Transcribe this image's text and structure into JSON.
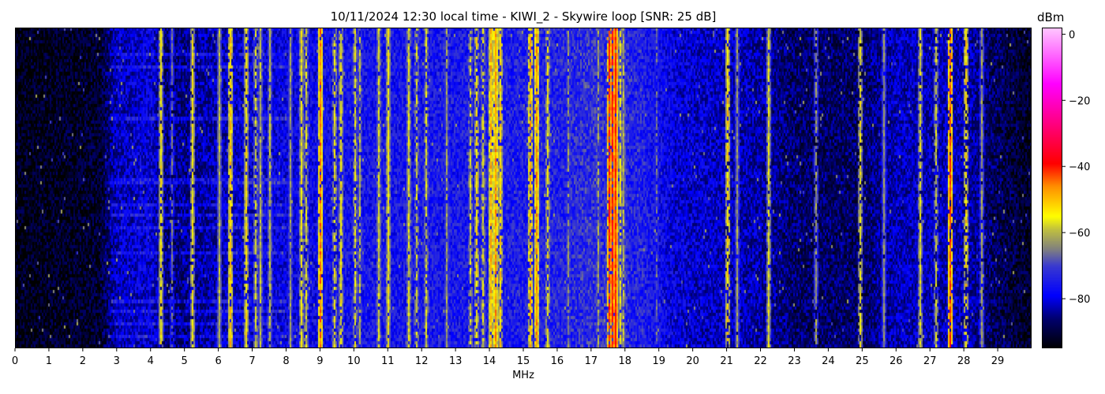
{
  "chart_data": {
    "type": "heatmap",
    "title": "10/11/2024 12:30 local time - KIWI_2 - Skywire loop [SNR: 25 dB]",
    "xlabel": "MHz",
    "ylabel": "",
    "xlim": [
      0,
      30
    ],
    "x_ticks": [
      "0",
      "1",
      "2",
      "3",
      "4",
      "5",
      "6",
      "7",
      "8",
      "9",
      "10",
      "11",
      "12",
      "13",
      "14",
      "15",
      "16",
      "17",
      "18",
      "19",
      "20",
      "21",
      "22",
      "23",
      "24",
      "25",
      "26",
      "27",
      "28",
      "29"
    ],
    "colorbar": {
      "label": "dBm",
      "range": [
        -95,
        2
      ],
      "ticks": [
        "0",
        "−20",
        "−40",
        "−60",
        "−80"
      ],
      "tick_values": [
        0,
        -20,
        -40,
        -60,
        -80
      ],
      "colormap": [
        [
          -95,
          "#000000"
        ],
        [
          -86,
          "#00006e"
        ],
        [
          -79,
          "#0000ff"
        ],
        [
          -70,
          "#3a3ad0"
        ],
        [
          -65,
          "#808080"
        ],
        [
          -59,
          "#c0c040"
        ],
        [
          -55,
          "#ffff00"
        ],
        [
          -46,
          "#ff9000"
        ],
        [
          -39,
          "#ff0000"
        ],
        [
          -27,
          "#ff0080"
        ],
        [
          -15,
          "#ff00ff"
        ],
        [
          2,
          "#ffc8ff"
        ]
      ]
    },
    "noise_floor_dbm": [
      [
        0,
        -93
      ],
      [
        2.5,
        -91
      ],
      [
        3,
        -82
      ],
      [
        4,
        -80
      ],
      [
        4.5,
        -86
      ],
      [
        7,
        -80
      ],
      [
        10,
        -76
      ],
      [
        14,
        -75
      ],
      [
        16,
        -74
      ],
      [
        17,
        -72
      ],
      [
        18.5,
        -74
      ],
      [
        19.5,
        -80
      ],
      [
        22,
        -83
      ],
      [
        23,
        -87
      ],
      [
        25,
        -87
      ],
      [
        26,
        -82
      ],
      [
        28,
        -82
      ],
      [
        29,
        -88
      ],
      [
        30,
        -92
      ]
    ],
    "signals": [
      {
        "mhz": 4.27,
        "dbm": -55
      },
      {
        "mhz": 4.6,
        "dbm": -66
      },
      {
        "mhz": 5.2,
        "dbm": -55
      },
      {
        "mhz": 6.0,
        "dbm": -60
      },
      {
        "mhz": 6.35,
        "dbm": -50
      },
      {
        "mhz": 6.8,
        "dbm": -54
      },
      {
        "mhz": 7.1,
        "dbm": -58
      },
      {
        "mhz": 7.2,
        "dbm": -60
      },
      {
        "mhz": 7.5,
        "dbm": -60
      },
      {
        "mhz": 8.1,
        "dbm": -62
      },
      {
        "mhz": 8.45,
        "dbm": -56
      },
      {
        "mhz": 8.55,
        "dbm": -58
      },
      {
        "mhz": 9.0,
        "dbm": -45
      },
      {
        "mhz": 9.4,
        "dbm": -56
      },
      {
        "mhz": 9.6,
        "dbm": -55
      },
      {
        "mhz": 10.0,
        "dbm": -57
      },
      {
        "mhz": 10.15,
        "dbm": -60
      },
      {
        "mhz": 10.7,
        "dbm": -58
      },
      {
        "mhz": 11.0,
        "dbm": -55
      },
      {
        "mhz": 11.6,
        "dbm": -57
      },
      {
        "mhz": 11.85,
        "dbm": -58
      },
      {
        "mhz": 12.1,
        "dbm": -58
      },
      {
        "mhz": 12.7,
        "dbm": -62
      },
      {
        "mhz": 13.4,
        "dbm": -58
      },
      {
        "mhz": 13.6,
        "dbm": -54
      },
      {
        "mhz": 13.8,
        "dbm": -57
      },
      {
        "mhz": 14.0,
        "dbm": -49
      },
      {
        "mhz": 14.15,
        "dbm": -47
      },
      {
        "mhz": 14.3,
        "dbm": -52
      },
      {
        "mhz": 15.2,
        "dbm": -48
      },
      {
        "mhz": 15.35,
        "dbm": -47
      },
      {
        "mhz": 15.7,
        "dbm": -55
      },
      {
        "mhz": 16.3,
        "dbm": -63
      },
      {
        "mhz": 17.2,
        "dbm": -62
      },
      {
        "mhz": 17.5,
        "dbm": -40
      },
      {
        "mhz": 17.6,
        "dbm": -38
      },
      {
        "mhz": 17.7,
        "dbm": -40
      },
      {
        "mhz": 17.85,
        "dbm": -56
      },
      {
        "mhz": 17.95,
        "dbm": -60
      },
      {
        "mhz": 18.9,
        "dbm": -66
      },
      {
        "mhz": 21.0,
        "dbm": -52
      },
      {
        "mhz": 21.3,
        "dbm": -62
      },
      {
        "mhz": 22.2,
        "dbm": -57
      },
      {
        "mhz": 23.6,
        "dbm": -62
      },
      {
        "mhz": 24.9,
        "dbm": -56
      },
      {
        "mhz": 25.6,
        "dbm": -63
      },
      {
        "mhz": 26.7,
        "dbm": -57
      },
      {
        "mhz": 27.15,
        "dbm": -58
      },
      {
        "mhz": 27.6,
        "dbm": -42
      },
      {
        "mhz": 28.05,
        "dbm": -52
      },
      {
        "mhz": 28.5,
        "dbm": -62
      }
    ]
  }
}
